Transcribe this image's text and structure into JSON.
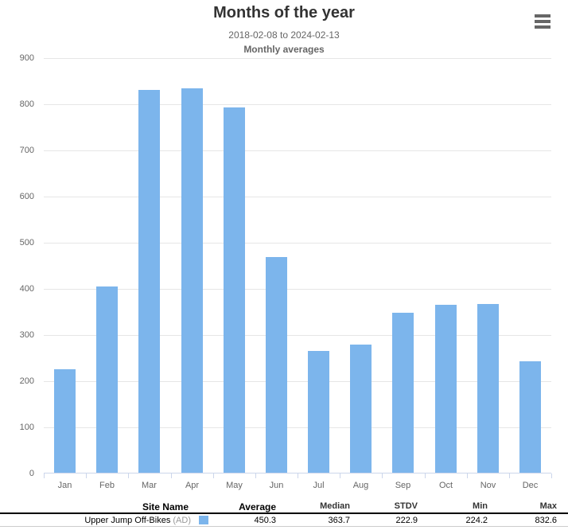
{
  "chart": {
    "title": "Months of the year",
    "subtitle_range": "2018-02-08 to 2024-02-13",
    "subtitle_note": "Monthly averages"
  },
  "chart_data": {
    "type": "bar",
    "title": "Months of the year",
    "subtitle": "2018-02-08 to 2024-02-13",
    "subtitle2": "Monthly averages",
    "categories": [
      "Jan",
      "Feb",
      "Mar",
      "Apr",
      "May",
      "Jun",
      "Jul",
      "Aug",
      "Sep",
      "Oct",
      "Nov",
      "Dec"
    ],
    "series": [
      {
        "name": "Upper Jump Off-Bikes (AD)",
        "color": "#7cb5ec",
        "values": [
          224.2,
          403,
          829,
          832.6,
          792,
          467,
          263,
          277,
          346,
          363,
          365,
          241
        ]
      }
    ],
    "ylim": [
      0,
      900
    ],
    "yticks": [
      0,
      100,
      200,
      300,
      400,
      500,
      600,
      700,
      800,
      900
    ],
    "xlabel": "",
    "ylabel": "",
    "grid": true,
    "legend_position": "bottom-table"
  },
  "icons": {
    "menu": "hamburger-icon"
  },
  "table": {
    "headers": {
      "site": "Site Name",
      "average": "Average",
      "median": "Median",
      "stdv": "STDV",
      "min": "Min",
      "max": "Max"
    },
    "row": {
      "site": "Upper Jump Off-Bikes",
      "site_suffix": "(AD)",
      "average": "450.3",
      "median": "363.7",
      "stdv": "222.9",
      "min": "224.2",
      "max": "832.6",
      "swatch_color": "#7cb5ec"
    }
  },
  "colors": {
    "bar": "#7cb5ec",
    "grid": "#e6e6e6",
    "axis": "#ccd6eb",
    "label": "#666666",
    "title": "#333333"
  }
}
